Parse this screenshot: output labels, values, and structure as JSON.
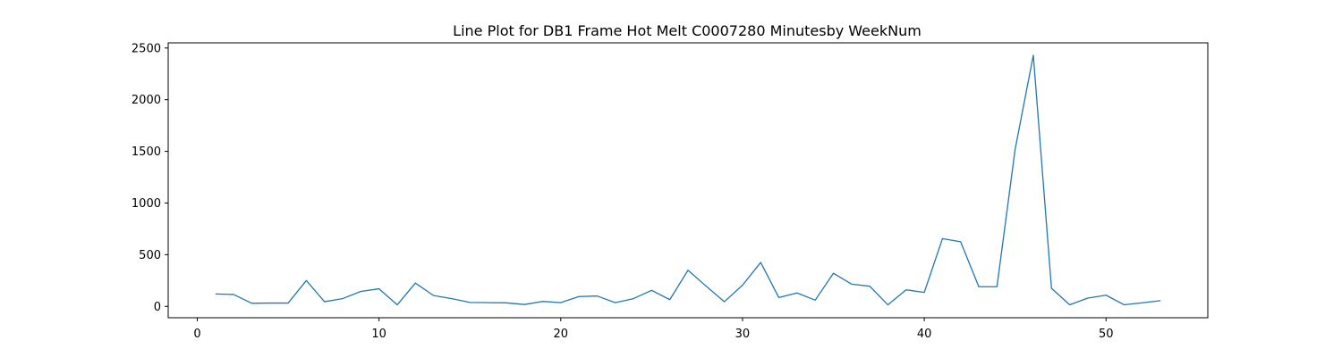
{
  "chart_data": {
    "type": "line",
    "title": "Line Plot for DB1 Frame Hot Melt C0007280 Minutesby WeekNum",
    "xlabel": "",
    "ylabel": "",
    "xlim": [
      -1.6,
      55.6
    ],
    "ylim": [
      -110,
      2550
    ],
    "xticks": [
      0,
      10,
      20,
      30,
      40,
      50
    ],
    "yticks": [
      0,
      500,
      1000,
      1500,
      2000,
      2500
    ],
    "grid": false,
    "color": "#1f77b4",
    "x": [
      1,
      2,
      3,
      4,
      5,
      6,
      7,
      8,
      9,
      10,
      11,
      12,
      13,
      14,
      15,
      16,
      17,
      18,
      19,
      20,
      21,
      22,
      23,
      24,
      25,
      26,
      27,
      28,
      29,
      30,
      31,
      32,
      33,
      34,
      35,
      36,
      37,
      38,
      39,
      40,
      41,
      42,
      43,
      44,
      45,
      46,
      47,
      48,
      49,
      50,
      51,
      52,
      53
    ],
    "values": [
      120,
      115,
      30,
      32,
      32,
      250,
      45,
      75,
      145,
      170,
      15,
      225,
      105,
      75,
      38,
      36,
      34,
      18,
      48,
      36,
      95,
      100,
      36,
      75,
      155,
      65,
      350,
      195,
      45,
      205,
      425,
      85,
      130,
      60,
      320,
      215,
      195,
      15,
      160,
      135,
      655,
      625,
      190,
      190,
      1520,
      2430,
      175,
      15,
      80,
      108,
      15,
      35,
      55
    ]
  }
}
